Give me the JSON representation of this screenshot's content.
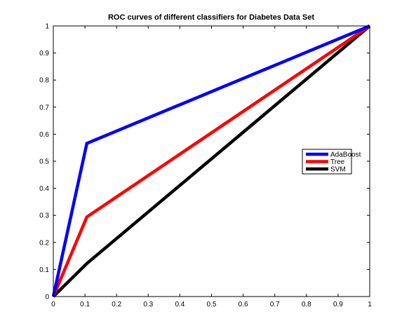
{
  "chart_data": {
    "type": "line",
    "title": "ROC curves of different classifiers for Diabetes Data Set",
    "xlabel": "",
    "ylabel": "",
    "xlim": [
      0,
      1
    ],
    "ylim": [
      0,
      1
    ],
    "x_ticks": [
      "0",
      "0.1",
      "0.2",
      "0.3",
      "0.4",
      "0.5",
      "0.6",
      "0.7",
      "0.8",
      "0.9",
      "1"
    ],
    "y_ticks": [
      "0",
      "0.1",
      "0.2",
      "0.3",
      "0.4",
      "0.5",
      "0.6",
      "0.7",
      "0.8",
      "0.9",
      "1"
    ],
    "grid": false,
    "legend_position": "right",
    "series": [
      {
        "name": "AdaBoost",
        "color": "#0000ff",
        "x": [
          0,
          0.106,
          1
        ],
        "y": [
          0,
          0.566,
          1
        ]
      },
      {
        "name": "Tree",
        "color": "#ff0000",
        "x": [
          0,
          0.106,
          1
        ],
        "y": [
          0,
          0.294,
          1
        ]
      },
      {
        "name": "SVM",
        "color": "#000000",
        "x": [
          0,
          0.106,
          1
        ],
        "y": [
          0,
          0.122,
          1
        ]
      }
    ]
  }
}
